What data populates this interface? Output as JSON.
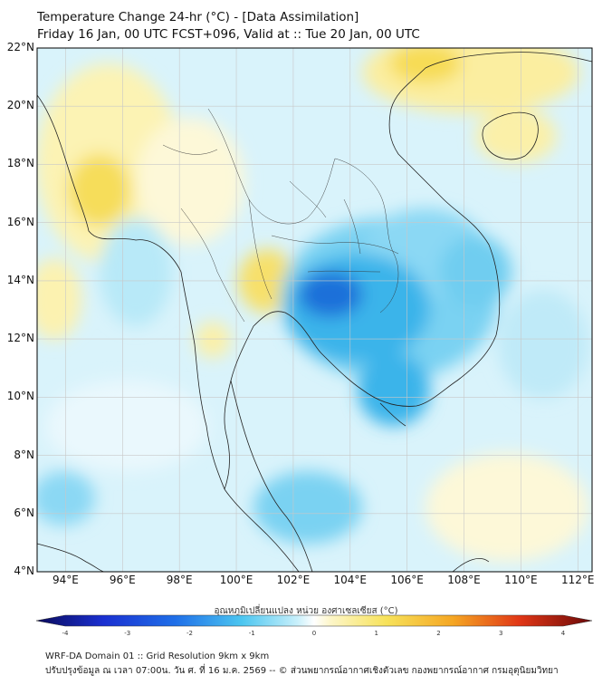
{
  "title": {
    "line1": "Temperature Change 24-hr (°C) - [Data Assimilation]",
    "line2": "Friday 16 Jan, 00 UTC FCST+096, Valid at :: Tue 20 Jan, 00 UTC"
  },
  "axes": {
    "lat_labels": [
      "22°N",
      "20°N",
      "18°N",
      "16°N",
      "14°N",
      "12°N",
      "10°N",
      "8°N",
      "6°N",
      "4°N"
    ],
    "lon_labels": [
      "94°E",
      "96°E",
      "98°E",
      "100°E",
      "102°E",
      "104°E",
      "106°E",
      "108°E",
      "110°E",
      "112°E"
    ]
  },
  "colorbar": {
    "label": "อุณหภูมิเปลี่ยนแปลง หน่วย องศาเซลเซียส (°C)",
    "ticks": [
      "-4",
      "-3",
      "-2",
      "-1",
      "0",
      "1",
      "2",
      "3",
      "4"
    ]
  },
  "footer": {
    "line1": "WRF-DA Domain 01 :: Grid Resolution 9km x 9km",
    "line2": "ปรับปรุงข้อมูล ณ เวลา 07:00น. วัน ศ. ที่ 16 ม.ค. 2569 -- © ส่วนพยากรณ์อากาศเชิงตัวเลข กองพยากรณ์อากาศ กรมอุตุนิยมวิทยา"
  },
  "colors": {
    "strong_cooling": "#1e6fd9",
    "cooling": "#4cc3ee",
    "mild_cooling": "#a6e3f5",
    "neutral": "#ffffff",
    "warming": "#f5d742",
    "mild_warming": "#fbf0a0"
  }
}
